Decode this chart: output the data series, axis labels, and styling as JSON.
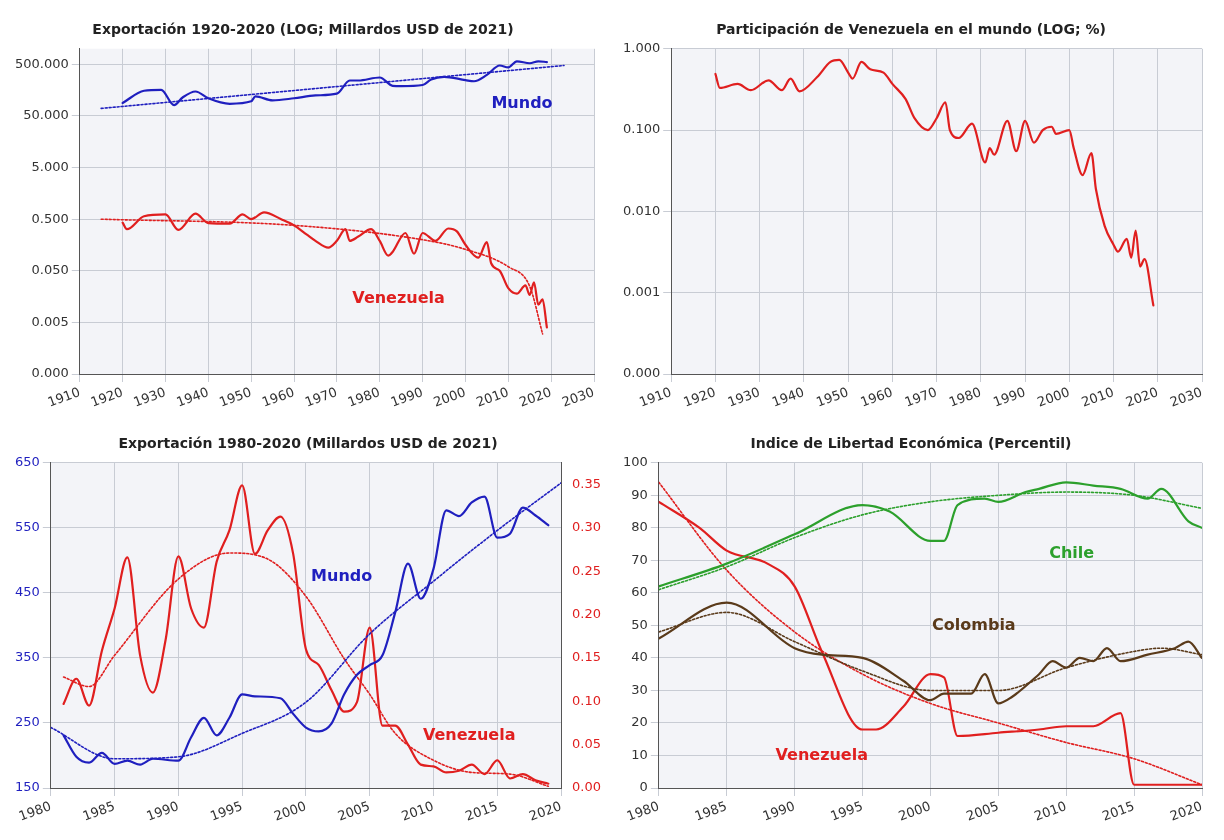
{
  "chart_data": [
    {
      "type": "line",
      "title": "Exportación 1920-2020 (LOG; Millardos USD de 2021)",
      "log": "y",
      "grid": true,
      "marker": "none",
      "xlim": [
        1910,
        2030
      ],
      "xticks": [
        1910,
        1920,
        1930,
        1940,
        1950,
        1960,
        1970,
        1980,
        1990,
        2000,
        2010,
        2020,
        2030
      ],
      "ylim": [
        0.0005,
        1000
      ],
      "yticks": [
        {
          "value": 0.0005,
          "label": "0.000"
        },
        {
          "value": 0.005,
          "label": "0.005"
        },
        {
          "value": 0.05,
          "label": "0.050"
        },
        {
          "value": 0.5,
          "label": "0.500"
        },
        {
          "value": 5,
          "label": "5.000"
        },
        {
          "value": 50,
          "label": "50.000"
        },
        {
          "value": 500,
          "label": "500.000"
        }
      ],
      "series": [
        {
          "name": "Mundo",
          "color": "#1f1fbf",
          "line_style": "solid",
          "x": [
            1920,
            1925,
            1929,
            1932,
            1934,
            1937,
            1940,
            1945,
            1950,
            1951,
            1955,
            1960,
            1965,
            1970,
            1973,
            1975,
            1980,
            1983,
            1985,
            1990,
            1992,
            1995,
            2000,
            2002,
            2005,
            2008,
            2010,
            2012,
            2015,
            2017,
            2019
          ],
          "values": [
            89,
            154,
            160,
            81,
            114,
            149,
            110,
            86,
            96,
            120,
            100,
            110,
            125,
            135,
            243,
            243,
            278,
            192,
            189,
            199,
            255,
            287,
            247,
            235,
            312,
            475,
            437,
            572,
            525,
            572,
            553
          ]
        },
        {
          "color": "#1f1fbf",
          "line_style": "dotted",
          "x": [
            1915,
            2023
          ],
          "values": [
            70,
            475
          ]
        },
        {
          "name": "Venezuela",
          "color": "#e01f1f",
          "line_style": "solid",
          "x": [
            1920,
            1921,
            1925,
            1930,
            1933,
            1937,
            1940,
            1945,
            1948,
            1950,
            1953,
            1957,
            1960,
            1963,
            1965,
            1968,
            1970,
            1972,
            1973,
            1975,
            1978,
            1980,
            1982,
            1983,
            1986,
            1988,
            1990,
            1993,
            1996,
            1998,
            2000,
            2003,
            2005,
            2006,
            2008,
            2010,
            2012,
            2014,
            2015,
            2016,
            2017,
            2018,
            2019
          ],
          "values": [
            0.43,
            0.32,
            0.57,
            0.62,
            0.31,
            0.64,
            0.42,
            0.41,
            0.62,
            0.5,
            0.68,
            0.5,
            0.38,
            0.25,
            0.19,
            0.14,
            0.19,
            0.32,
            0.19,
            0.23,
            0.32,
            0.19,
            0.098,
            0.116,
            0.27,
            0.107,
            0.27,
            0.19,
            0.33,
            0.29,
            0.16,
            0.09,
            0.18,
            0.07,
            0.05,
            0.023,
            0.018,
            0.026,
            0.017,
            0.03,
            0.011,
            0.014,
            0.004
          ]
        },
        {
          "color": "#e01f1f",
          "line_style": "dotted",
          "x": [
            1915,
            1960,
            1990,
            2000,
            2010,
            2015,
            2018
          ],
          "values": [
            0.5,
            0.38,
            0.2,
            0.13,
            0.06,
            0.025,
            0.003
          ]
        }
      ]
    },
    {
      "type": "line",
      "title": "Participación de Venezuela en el mundo (LOG; %)",
      "log": "y",
      "grid": true,
      "marker": "none",
      "xlim": [
        1910,
        2030
      ],
      "xticks": [
        1910,
        1920,
        1930,
        1940,
        1950,
        1960,
        1970,
        1980,
        1990,
        2000,
        2010,
        2020,
        2030
      ],
      "ylim": [
        0.0001,
        1
      ],
      "yticks": [
        {
          "value": 0.0001,
          "label": "0.000"
        },
        {
          "value": 0.001,
          "label": "0.001"
        },
        {
          "value": 0.01,
          "label": "0.010"
        },
        {
          "value": 0.1,
          "label": "0.100"
        },
        {
          "value": 1,
          "label": "1.000"
        }
      ],
      "series": [
        {
          "color": "#e01f1f",
          "line_style": "solid",
          "x": [
            1920,
            1921,
            1925,
            1928,
            1932,
            1935,
            1937,
            1939,
            1943,
            1946,
            1948,
            1950,
            1951,
            1953,
            1955,
            1958,
            1960,
            1963,
            1965,
            1968,
            1970,
            1972,
            1973,
            1975,
            1978,
            1981,
            1982,
            1983,
            1986,
            1988,
            1990,
            1992,
            1994,
            1996,
            1997,
            2000,
            2001,
            2003,
            2005,
            2006,
            2008,
            2010,
            2011,
            2013,
            2014,
            2015,
            2016,
            2017,
            2019
          ],
          "values": [
            0.49,
            0.33,
            0.37,
            0.31,
            0.41,
            0.31,
            0.43,
            0.3,
            0.45,
            0.69,
            0.73,
            0.51,
            0.43,
            0.69,
            0.56,
            0.51,
            0.37,
            0.24,
            0.14,
            0.1,
            0.14,
            0.22,
            0.1,
            0.08,
            0.12,
            0.04,
            0.06,
            0.05,
            0.13,
            0.055,
            0.13,
            0.07,
            0.1,
            0.11,
            0.09,
            0.1,
            0.06,
            0.028,
            0.052,
            0.019,
            0.0066,
            0.0039,
            0.0032,
            0.0046,
            0.0027,
            0.0058,
            0.0021,
            0.0026,
            0.0007
          ]
        }
      ]
    },
    {
      "type": "line",
      "title": "Exportación 1980-2020 (Millardos USD de 2021)",
      "grid": true,
      "marker": "none",
      "xlim": [
        1980,
        2020
      ],
      "xticks": [
        1980,
        1985,
        1990,
        1995,
        2000,
        2005,
        2010,
        2015,
        2020
      ],
      "ylim": [
        150,
        650
      ],
      "yticks": [
        150,
        250,
        350,
        450,
        550,
        650
      ],
      "y2lim": [
        0,
        0.375
      ],
      "y2ticks": [
        {
          "value": 0,
          "label": "0.00"
        },
        0.05,
        {
          "value": 0.1,
          "label": "0.10"
        },
        0.15,
        {
          "value": 0.2,
          "label": "0.20"
        },
        0.25,
        {
          "value": 0.3,
          "label": "0.30"
        },
        0.35
      ],
      "series": [
        {
          "name": "Mundo",
          "color": "#1f1fbf",
          "line_style": "solid",
          "axis": "y",
          "x": [
            1981,
            1982,
            1983,
            1984,
            1985,
            1986,
            1987,
            1988,
            1990,
            1991,
            1992,
            1993,
            1994,
            1995,
            1996,
            1998,
            1999,
            2000,
            2001,
            2002,
            2003,
            2004,
            2005,
            2006,
            2007,
            2008,
            2009,
            2010,
            2011,
            2012,
            2013,
            2014,
            2015,
            2016,
            2017,
            2018,
            2019
          ],
          "values": [
            231,
            198,
            189,
            204,
            187,
            192,
            186,
            195,
            192,
            228,
            258,
            231,
            258,
            294,
            291,
            288,
            264,
            243,
            237,
            249,
            294,
            324,
            339,
            354,
            420,
            495,
            441,
            487,
            577,
            568,
            589,
            598,
            535,
            541,
            581,
            569,
            554
          ]
        },
        {
          "color": "#1f1fbf",
          "line_style": "dotted",
          "axis": "y",
          "x": [
            1980,
            1985,
            1990,
            1995,
            2000,
            2005,
            2010,
            2015,
            2020
          ],
          "values": [
            243,
            195,
            198,
            234,
            282,
            387,
            468,
            546,
            619
          ]
        },
        {
          "name": "Venezuela",
          "color": "#e01f1f",
          "line_style": "solid",
          "axis": "y2",
          "x": [
            1981,
            1982,
            1983,
            1984,
            1985,
            1986,
            1987,
            1988,
            1989,
            1990,
            1991,
            1992,
            1993,
            1994,
            1995,
            1996,
            1997,
            1998,
            1999,
            2000,
            2001,
            2002,
            2003,
            2004,
            2005,
            2006,
            2007,
            2008,
            2009,
            2010,
            2011,
            2012,
            2013,
            2014,
            2015,
            2016,
            2017,
            2018,
            2019
          ],
          "values": [
            0.097,
            0.126,
            0.095,
            0.158,
            0.207,
            0.266,
            0.153,
            0.11,
            0.171,
            0.267,
            0.207,
            0.185,
            0.261,
            0.297,
            0.349,
            0.27,
            0.297,
            0.313,
            0.27,
            0.16,
            0.142,
            0.113,
            0.088,
            0.099,
            0.185,
            0.072,
            0.072,
            0.05,
            0.027,
            0.025,
            0.018,
            0.02,
            0.027,
            0.016,
            0.032,
            0.011,
            0.016,
            0.009,
            0.005
          ]
        },
        {
          "color": "#e01f1f",
          "line_style": "dotted",
          "axis": "y2",
          "x": [
            1981,
            1983,
            1985,
            1990,
            1994,
            1997,
            2000,
            2003,
            2005,
            2007,
            2010,
            2013,
            2016,
            2019
          ],
          "values": [
            0.128,
            0.117,
            0.153,
            0.241,
            0.271,
            0.264,
            0.221,
            0.149,
            0.108,
            0.063,
            0.032,
            0.018,
            0.016,
            0.002
          ]
        }
      ]
    },
    {
      "type": "line",
      "title": "Indice de Libertad Económica (Percentil)",
      "grid": true,
      "marker": "none",
      "xlim": [
        1980,
        2020
      ],
      "xticks": [
        1980,
        1985,
        1990,
        1995,
        2000,
        2005,
        2010,
        2015,
        2020
      ],
      "ylim": [
        0,
        100
      ],
      "yticks": [
        0,
        10,
        20,
        30,
        40,
        50,
        60,
        70,
        80,
        90,
        100
      ],
      "series": [
        {
          "name": "Chile",
          "color": "#2ca02c",
          "line_style": "solid",
          "x": [
            1980,
            1985,
            1990,
            1995,
            1997,
            2000,
            2001,
            2002,
            2004,
            2005,
            2007,
            2008,
            2010,
            2012,
            2014,
            2016,
            2017,
            2019,
            2020
          ],
          "values": [
            62,
            69,
            78,
            87,
            85,
            76,
            76,
            87,
            89,
            88,
            91,
            92,
            94,
            93,
            92,
            89,
            92,
            82,
            80
          ]
        },
        {
          "color": "#2ca02c",
          "line_style": "dotted",
          "x": [
            1980,
            1985,
            1990,
            1995,
            2000,
            2005,
            2010,
            2015,
            2020
          ],
          "values": [
            61,
            68,
            77,
            84,
            88,
            90,
            91,
            90,
            86
          ]
        },
        {
          "name": "Colombia",
          "color": "#5a3a1a",
          "line_style": "solid",
          "x": [
            1980,
            1985,
            1990,
            1992,
            1995,
            1998,
            2000,
            2001,
            2003,
            2004,
            2005,
            2006,
            2008,
            2009,
            2010,
            2011,
            2012,
            2013,
            2014,
            2016,
            2018,
            2019,
            2020
          ],
          "values": [
            46,
            57,
            43,
            41,
            40,
            33,
            27,
            29,
            29,
            35,
            26,
            28,
            35,
            39,
            37,
            40,
            39,
            43,
            39,
            41,
            43,
            45,
            40
          ]
        },
        {
          "color": "#5a3a1a",
          "line_style": "dotted",
          "x": [
            1980,
            1985,
            1990,
            1995,
            2000,
            2005,
            2010,
            2015,
            2017,
            2020
          ],
          "values": [
            48,
            54,
            45,
            36,
            30,
            30,
            37,
            42,
            43,
            41
          ]
        },
        {
          "name": "Venezuela",
          "color": "#e01f1f",
          "line_style": "solid",
          "x": [
            1980,
            1983,
            1985,
            1988,
            1990,
            1992,
            1995,
            1996,
            1998,
            2000,
            2001,
            2002,
            2005,
            2008,
            2010,
            2012,
            2014,
            2015,
            2017,
            2020
          ],
          "values": [
            88,
            80,
            73,
            69,
            62,
            42,
            18,
            18,
            25,
            35,
            34,
            16,
            17,
            18,
            19,
            19,
            23,
            1,
            1,
            1
          ]
        },
        {
          "color": "#e01f1f",
          "line_style": "dotted",
          "x": [
            1980,
            1985,
            1990,
            1995,
            2000,
            2005,
            2010,
            2015,
            2020
          ],
          "values": [
            94,
            67,
            48,
            35,
            26,
            20,
            14,
            9,
            1
          ]
        }
      ]
    }
  ]
}
